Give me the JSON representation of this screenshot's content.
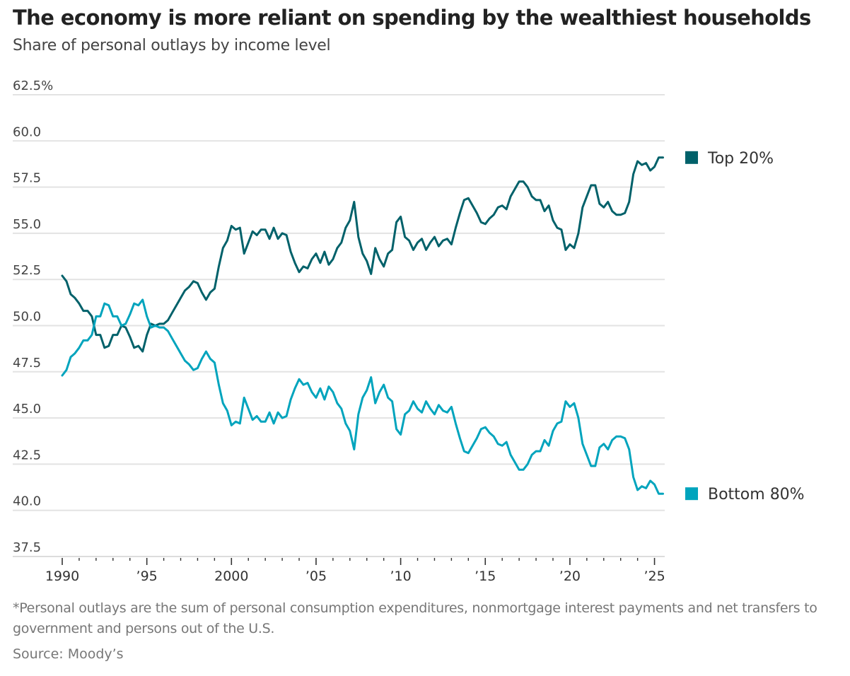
{
  "header": {
    "title": "The economy is more reliant on spending by the wealthiest households",
    "subtitle": "Share of personal outlays by income level"
  },
  "footer": {
    "footnote": "*Personal outlays are the sum of personal consumption expenditures, nonmortgage interest payments and net transfers to government and persons out of the U.S.",
    "source": "Source: Moody’s"
  },
  "colors": {
    "top20": "#00616a",
    "bottom80": "#00a4bd",
    "grid": "#e3e3e3",
    "axis": "#333333"
  },
  "chart_data": {
    "type": "line",
    "title": "The economy is more reliant on spending by the wealthiest households",
    "subtitle": "Share of personal outlays by income level",
    "xlabel": "",
    "ylabel": "",
    "ylim": [
      37.5,
      62.5
    ],
    "xlim": [
      1989.25,
      2025.6
    ],
    "grid": true,
    "legend_placement": "right (end of lines)",
    "y_ticks": [
      {
        "value": 62.5,
        "label": "62.5%"
      },
      {
        "value": 60.0,
        "label": "60.0"
      },
      {
        "value": 57.5,
        "label": "57.5"
      },
      {
        "value": 55.0,
        "label": "55.0"
      },
      {
        "value": 52.5,
        "label": "52.5"
      },
      {
        "value": 50.0,
        "label": "50.0"
      },
      {
        "value": 47.5,
        "label": "47.5"
      },
      {
        "value": 45.0,
        "label": "45.0"
      },
      {
        "value": 42.5,
        "label": "42.5"
      },
      {
        "value": 40.0,
        "label": "40.0"
      },
      {
        "value": 37.5,
        "label": "37.5"
      }
    ],
    "x_ticks": [
      {
        "value": 1990,
        "label": "1990"
      },
      {
        "value": 1995,
        "label": "’95"
      },
      {
        "value": 2000,
        "label": "2000"
      },
      {
        "value": 2005,
        "label": "’05"
      },
      {
        "value": 2010,
        "label": "’10"
      },
      {
        "value": 2015,
        "label": "’15"
      },
      {
        "value": 2020,
        "label": "’20"
      },
      {
        "value": 2025,
        "label": "’25"
      }
    ],
    "x_minor_ticks_per_year": 1,
    "x_start": 1990.0,
    "x_step": 0.25,
    "series": [
      {
        "name": "Top 20%",
        "color": "#00616a",
        "values": [
          52.7,
          52.4,
          51.7,
          51.5,
          51.2,
          50.8,
          50.8,
          50.5,
          49.5,
          49.5,
          48.8,
          48.9,
          49.5,
          49.5,
          50.0,
          49.9,
          49.4,
          48.8,
          48.9,
          48.6,
          49.5,
          50.1,
          50.0,
          50.1,
          50.1,
          50.3,
          50.7,
          51.1,
          51.5,
          51.9,
          52.1,
          52.4,
          52.3,
          51.8,
          51.4,
          51.8,
          52.0,
          53.2,
          54.2,
          54.6,
          55.4,
          55.2,
          55.3,
          53.9,
          54.5,
          55.1,
          54.9,
          55.2,
          55.2,
          54.7,
          55.3,
          54.7,
          55.0,
          54.9,
          54.0,
          53.4,
          52.9,
          53.2,
          53.1,
          53.6,
          53.9,
          53.4,
          54.0,
          53.3,
          53.6,
          54.2,
          54.5,
          55.3,
          55.7,
          56.7,
          54.8,
          53.9,
          53.5,
          52.8,
          54.2,
          53.6,
          53.2,
          53.9,
          54.1,
          55.6,
          55.9,
          54.8,
          54.6,
          54.1,
          54.5,
          54.7,
          54.1,
          54.5,
          54.8,
          54.3,
          54.6,
          54.7,
          54.4,
          55.3,
          56.1,
          56.8,
          56.9,
          56.5,
          56.1,
          55.6,
          55.5,
          55.8,
          56.0,
          56.4,
          56.5,
          56.3,
          57.0,
          57.4,
          57.8,
          57.8,
          57.5,
          57.0,
          56.8,
          56.8,
          56.2,
          56.5,
          55.7,
          55.3,
          55.2,
          54.1,
          54.4,
          54.2,
          55.0,
          56.4,
          57.0,
          57.6,
          57.6,
          56.6,
          56.4,
          56.7,
          56.2,
          56.0,
          56.0,
          56.1,
          56.7,
          58.2,
          58.9,
          58.7,
          58.8,
          58.4,
          58.6,
          59.1,
          59.1
        ]
      },
      {
        "name": "Bottom 80%",
        "color": "#00a4bd",
        "values": [
          47.3,
          47.6,
          48.3,
          48.5,
          48.8,
          49.2,
          49.2,
          49.5,
          50.5,
          50.5,
          51.2,
          51.1,
          50.5,
          50.5,
          50.0,
          50.1,
          50.6,
          51.2,
          51.1,
          51.4,
          50.5,
          49.9,
          50.0,
          49.9,
          49.9,
          49.7,
          49.3,
          48.9,
          48.5,
          48.1,
          47.9,
          47.6,
          47.7,
          48.2,
          48.6,
          48.2,
          48.0,
          46.8,
          45.8,
          45.4,
          44.6,
          44.8,
          44.7,
          46.1,
          45.5,
          44.9,
          45.1,
          44.8,
          44.8,
          45.3,
          44.7,
          45.3,
          45.0,
          45.1,
          46.0,
          46.6,
          47.1,
          46.8,
          46.9,
          46.4,
          46.1,
          46.6,
          46.0,
          46.7,
          46.4,
          45.8,
          45.5,
          44.7,
          44.3,
          43.3,
          45.2,
          46.1,
          46.5,
          47.2,
          45.8,
          46.4,
          46.8,
          46.1,
          45.9,
          44.4,
          44.1,
          45.2,
          45.4,
          45.9,
          45.5,
          45.3,
          45.9,
          45.5,
          45.2,
          45.7,
          45.4,
          45.3,
          45.6,
          44.7,
          43.9,
          43.2,
          43.1,
          43.5,
          43.9,
          44.4,
          44.5,
          44.2,
          44.0,
          43.6,
          43.5,
          43.7,
          43.0,
          42.6,
          42.2,
          42.2,
          42.5,
          43.0,
          43.2,
          43.2,
          43.8,
          43.5,
          44.3,
          44.7,
          44.8,
          45.9,
          45.6,
          45.8,
          45.0,
          43.6,
          43.0,
          42.4,
          42.4,
          43.4,
          43.6,
          43.3,
          43.8,
          44.0,
          44.0,
          43.9,
          43.3,
          41.8,
          41.1,
          41.3,
          41.2,
          41.6,
          41.4,
          40.9,
          40.9
        ]
      }
    ]
  }
}
